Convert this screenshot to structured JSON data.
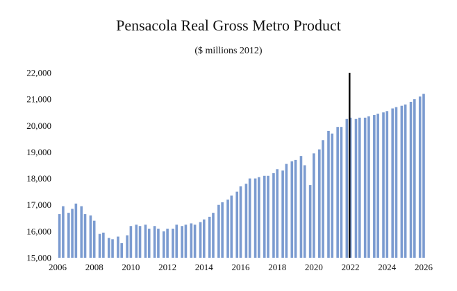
{
  "chart_data": {
    "type": "bar",
    "title": "Pensacola Real Gross Metro Product",
    "subtitle": "($ millions 2012)",
    "xlabel": "",
    "ylabel": "",
    "ylim": [
      15000,
      22000
    ],
    "xlim": [
      2006,
      2026
    ],
    "y_ticks": [
      "15,000",
      "16,000",
      "17,000",
      "18,000",
      "19,000",
      "20,000",
      "21,000",
      "22,000"
    ],
    "y_tick_values": [
      15000,
      16000,
      17000,
      18000,
      19000,
      20000,
      21000,
      22000
    ],
    "x_ticks": [
      "2006",
      "2008",
      "2010",
      "2012",
      "2014",
      "2016",
      "2018",
      "2020",
      "2022",
      "2024",
      "2026"
    ],
    "x_tick_values": [
      2006,
      2008,
      2010,
      2012,
      2014,
      2016,
      2018,
      2020,
      2022,
      2024,
      2026
    ],
    "bar_color": "#7b9bd0",
    "marker_color": "#000000",
    "marker_x": 2021.95,
    "grid": false,
    "series": [
      {
        "x": [
          2006.1,
          2006.3,
          2006.6,
          2006.8,
          2007.0,
          2007.3,
          2007.5,
          2007.8,
          2008.0,
          2008.3,
          2008.5,
          2008.8,
          2009.0,
          2009.3,
          2009.5,
          2009.8,
          2010.0,
          2010.3,
          2010.5,
          2010.8,
          2011.0,
          2011.3,
          2011.5,
          2011.8,
          2012.0,
          2012.3,
          2012.5,
          2012.8,
          2013.0,
          2013.3,
          2013.5,
          2013.8,
          2014.0,
          2014.3,
          2014.5,
          2014.8,
          2015.0,
          2015.3,
          2015.5,
          2015.8,
          2016.0,
          2016.3,
          2016.5,
          2016.8,
          2017.0,
          2017.3,
          2017.5,
          2017.8,
          2018.0,
          2018.3,
          2018.5,
          2018.8,
          2019.0,
          2019.3,
          2019.5,
          2019.8,
          2020.0,
          2020.3,
          2020.5,
          2020.8,
          2021.0,
          2021.3,
          2021.5,
          2021.8,
          2022.0,
          2022.3,
          2022.5,
          2022.8,
          2023.0,
          2023.3,
          2023.5,
          2023.8,
          2024.0,
          2024.3,
          2024.5,
          2024.8,
          2025.0,
          2025.3,
          2025.5,
          2025.8,
          2026.0
        ],
        "values": [
          16650,
          16950,
          16700,
          16850,
          17050,
          16950,
          16650,
          16600,
          16400,
          15900,
          15950,
          15750,
          15700,
          15800,
          15550,
          15850,
          16200,
          16250,
          16200,
          16250,
          16100,
          16200,
          16100,
          16000,
          16100,
          16100,
          16250,
          16200,
          16250,
          16300,
          16250,
          16350,
          16450,
          16550,
          16700,
          17000,
          17100,
          17200,
          17350,
          17500,
          17700,
          17800,
          18000,
          18000,
          18050,
          18100,
          18100,
          18200,
          18350,
          18300,
          18550,
          18650,
          18700,
          18850,
          18500,
          17750,
          18950,
          19100,
          19450,
          19800,
          19700,
          19950,
          19950,
          20250,
          20300,
          20250,
          20300,
          20300,
          20350,
          20400,
          20450,
          20500,
          20550,
          20650,
          20700,
          20750,
          20800,
          20900,
          21000,
          21100,
          21200
        ]
      }
    ]
  }
}
